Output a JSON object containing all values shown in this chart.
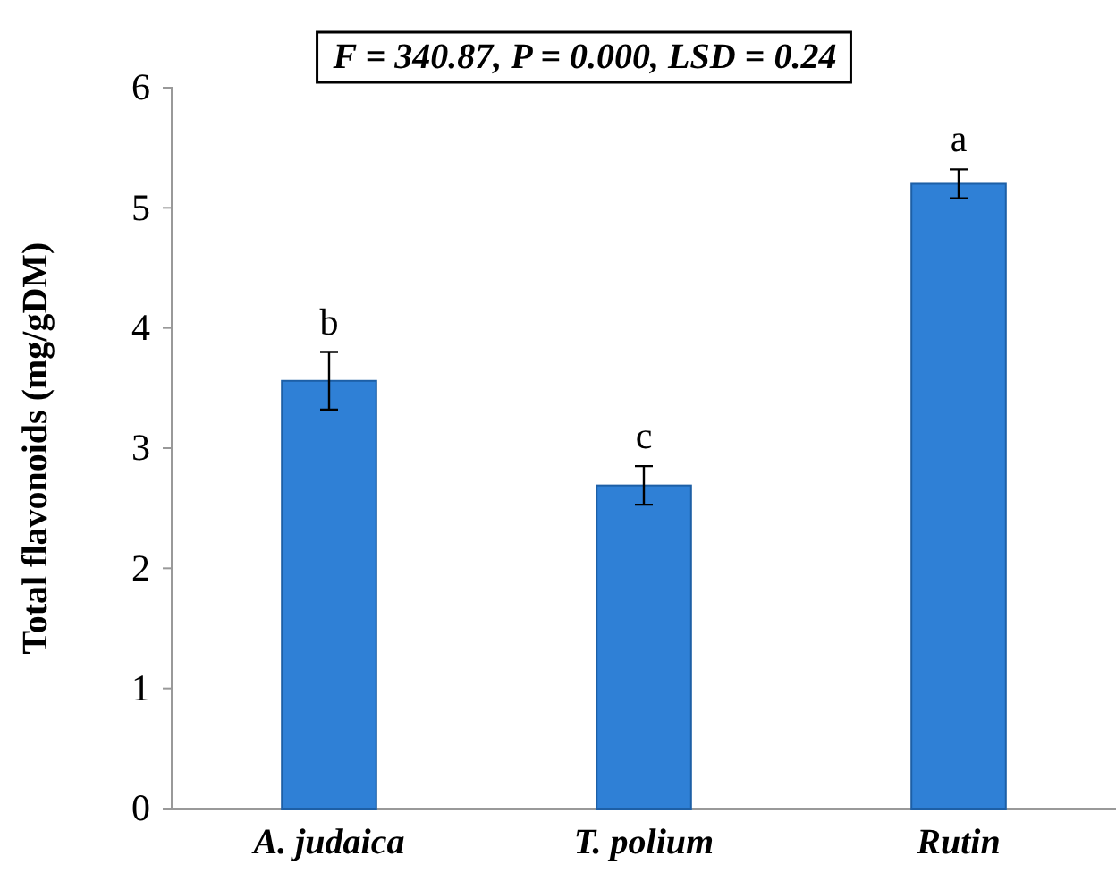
{
  "chart_data": {
    "type": "bar",
    "title": "F = 340.87, P = 0.000, LSD = 0.24",
    "ylabel": "Total flavonoids (mg/gDM)",
    "categories": [
      "A. judaica",
      "T. polium",
      "Rutin"
    ],
    "values": [
      3.56,
      2.69,
      5.2
    ],
    "errors": [
      0.24,
      0.16,
      0.12
    ],
    "color": "#2f80d6",
    "ylim": [
      0,
      6
    ],
    "yticks": [
      0,
      1,
      2,
      3,
      4,
      5,
      6
    ],
    "annotations": [
      {
        "text": "b",
        "x": "A. judaica",
        "y": 3.8
      },
      {
        "text": "c",
        "x": "T. polium",
        "y": 2.85
      },
      {
        "text": "a",
        "x": "Rutin",
        "y": 5.32
      }
    ]
  }
}
